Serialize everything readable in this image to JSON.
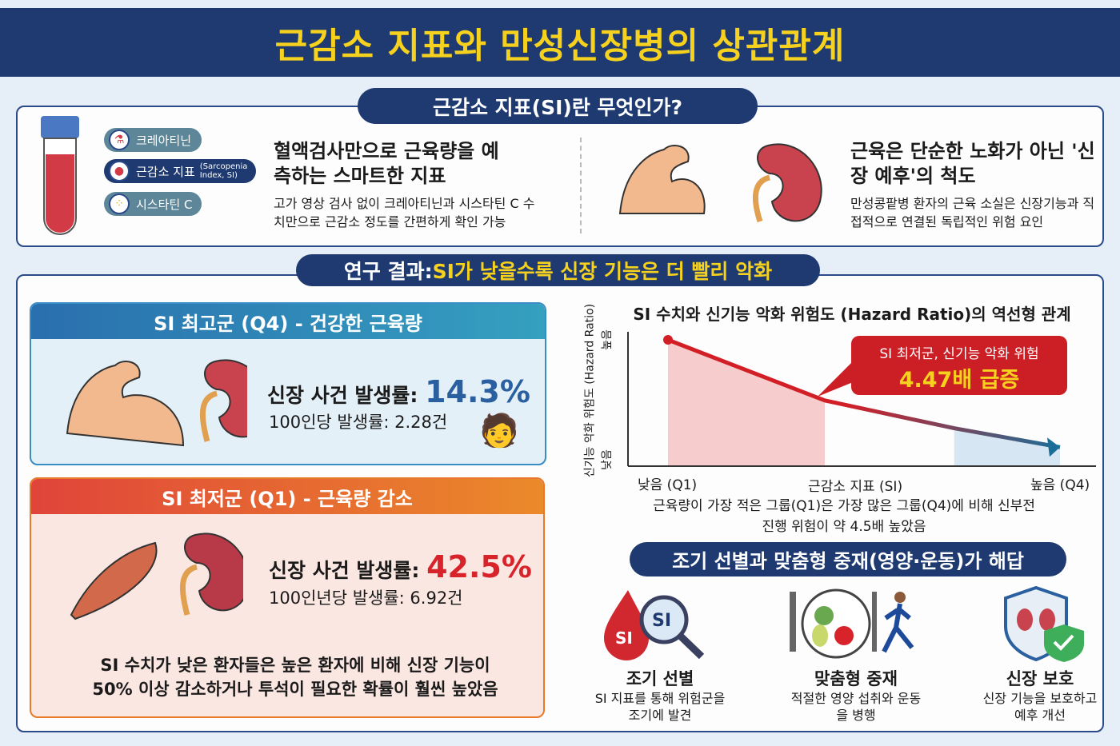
{
  "header": {
    "title": "근감소 지표와 만성신장병의 상관관계"
  },
  "section1": {
    "pill": "근감소 지표(SI)란 무엇인가?",
    "chips": [
      {
        "label": "크레아티닌",
        "icon": "flask-icon"
      },
      {
        "label": "근감소 지표",
        "sub": "(Sarcopenia Index, SI)",
        "icon": "blood-drop-icon"
      },
      {
        "label": "시스타틴 C",
        "icon": "molecule-icon"
      }
    ],
    "left_title": "혈액검사만으로 근육량을 예측하는 스마트한 지표",
    "left_desc": "고가 영상 검사 없이 크레아티닌과 시스타틴 C 수치만으로 근감소 정도를 간편하게 확인 가능",
    "right_title": "근육은 단순한 노화가 아닌 '신장 예후'의 척도",
    "right_desc": "만성콩팥병 환자의 근육 소실은 신장기능과 직접적으로 연결된 독립적인 위험 요인"
  },
  "section2": {
    "pill_prefix": "연구 결과: ",
    "pill_highlight": "SI가 낮을수록 신장 기능은 더 빨리 악화",
    "q4": {
      "header": "SI 최고군 (Q4) - 건강한 근육량",
      "stat_label": "신장 사건 발생률: ",
      "stat_value": "14.3%",
      "rate": "100인당 발생률: 2.28건"
    },
    "q1": {
      "header": "SI 최저군 (Q1) - 근육량 감소",
      "stat_label": "신장 사건 발생률: ",
      "stat_value": "42.5%",
      "rate": "100인년당 발생률: 6.92건",
      "note": "SI 수치가 낮은 환자들은 높은 환자에 비해 신장 기능이 50% 이상 감소하거나 투석이 필요한 확률이 훨씬 높았음"
    },
    "callout": {
      "line1": "SI 최저군, 신기능 악화 위험",
      "line2": "4.47배 급증"
    },
    "chart_caption": "근육량이 가장 적은 그룹(Q1)은 가장 많은 그룹(Q4)에 비해 신부전 진행 위험이 약 4.5배 높았음",
    "bottom_pill": "조기 선별과 맞춤형 중재(영양·운동)가 해답",
    "actions": [
      {
        "title": "조기 선별",
        "desc": "SI 지표를 통해 위험군을 조기에 발견",
        "icon": "magnifier-si-icon",
        "badge1": "SI",
        "badge2": "SI"
      },
      {
        "title": "맞춤형 중재",
        "desc": "적절한 영양 섭취와 운동을 병행",
        "icon": "plate-runner-icon"
      },
      {
        "title": "신장 보호",
        "desc": "신장 기능을 보호하고 예후 개선",
        "icon": "kidney-shield-icon"
      }
    ]
  },
  "chart_data": {
    "type": "line",
    "title": "SI 수치와 신기능 악화 위험도 (Hazard Ratio)의 역선형 관계",
    "xlabel": "근감소 지표 (SI)",
    "ylabel": "신기능 악화 위험도 (Hazard Ratio)",
    "x_tick_labels": [
      "낮음 (Q1)",
      "높음 (Q4)"
    ],
    "y_tick_labels": [
      "낮음",
      "높음"
    ],
    "x": [
      0,
      0.4,
      0.73,
      1
    ],
    "y": [
      1,
      0.52,
      0.3,
      0.15
    ],
    "xlim": [
      0,
      1
    ],
    "ylim": [
      0,
      1
    ],
    "highlight_regions": [
      {
        "range": [
          0,
          0.4
        ],
        "color": "#f6cccc"
      },
      {
        "range": [
          0.73,
          1
        ],
        "color": "#d6e6f3"
      }
    ],
    "colors": {
      "high": "#d21f26",
      "low": "#1c6e98"
    },
    "grid": false
  },
  "colors": {
    "navy": "#1e3a70",
    "yellow": "#f6d21e",
    "red": "#d8232a",
    "blue": "#2a5fa0",
    "orange": "#e8782a"
  }
}
